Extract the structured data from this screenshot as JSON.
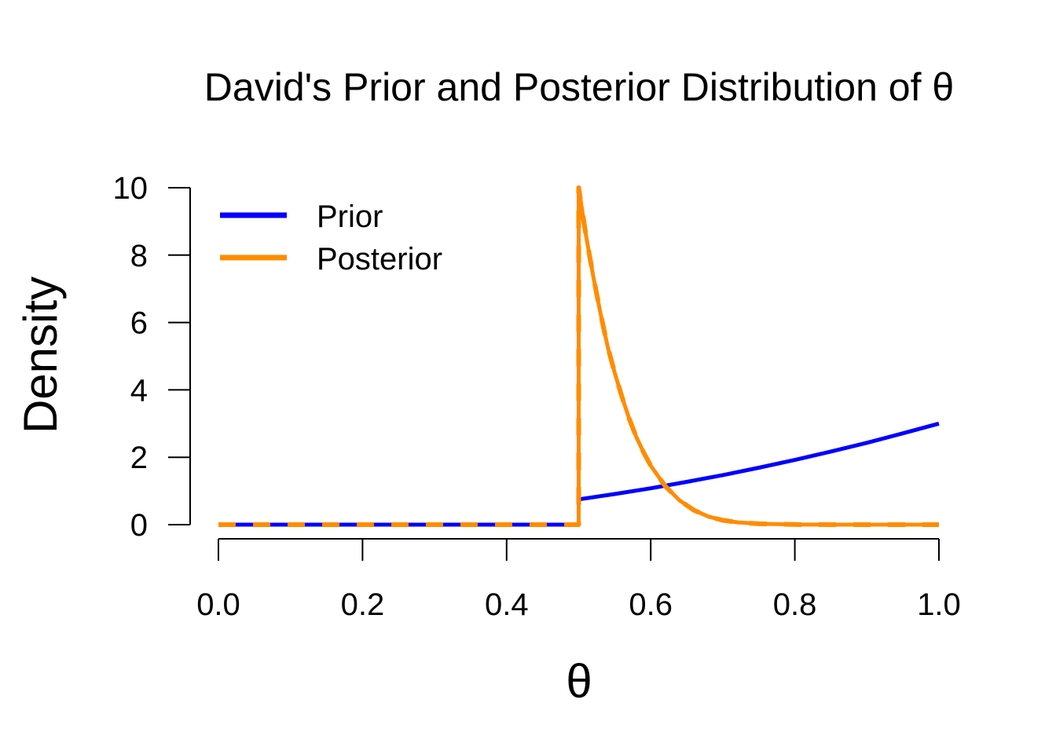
{
  "chart_data": {
    "type": "line",
    "title": "David's Prior and Posterior Distribution of θ",
    "xlabel": "θ",
    "ylabel": "Density",
    "xlim": [
      0,
      1
    ],
    "ylim": [
      0,
      10
    ],
    "x_ticks": [
      "0.0",
      "0.2",
      "0.4",
      "0.6",
      "0.8",
      "1.0"
    ],
    "y_ticks": [
      "0",
      "2",
      "4",
      "6",
      "8",
      "10"
    ],
    "grid": false,
    "legend_position": "top-left",
    "series": [
      {
        "name": "Prior",
        "color": "#0000ff",
        "style": "solid",
        "x": [
          0.0,
          0.5,
          0.5,
          0.55,
          0.6,
          0.65,
          0.7,
          0.75,
          0.8,
          0.85,
          0.9,
          0.95,
          1.0
        ],
        "y": [
          0,
          0,
          0.75,
          0.91,
          1.08,
          1.27,
          1.47,
          1.69,
          1.92,
          2.17,
          2.43,
          2.71,
          3.0
        ]
      },
      {
        "name": "Posterior",
        "color": "#ff8c00",
        "style": "dashed",
        "x": [
          0.0,
          0.5,
          0.5,
          0.51,
          0.52,
          0.53,
          0.54,
          0.55,
          0.56,
          0.57,
          0.58,
          0.59,
          0.6,
          0.62,
          0.64,
          0.66,
          0.68,
          0.7,
          0.72,
          0.75,
          0.8,
          0.85,
          0.9,
          0.95,
          1.0
        ],
        "y": [
          0,
          0,
          10.0,
          8.6,
          7.4,
          6.3,
          5.3,
          4.5,
          3.8,
          3.15,
          2.6,
          2.15,
          1.75,
          1.15,
          0.72,
          0.43,
          0.24,
          0.13,
          0.07,
          0.025,
          0.005,
          0.001,
          0,
          0,
          0
        ]
      }
    ]
  }
}
